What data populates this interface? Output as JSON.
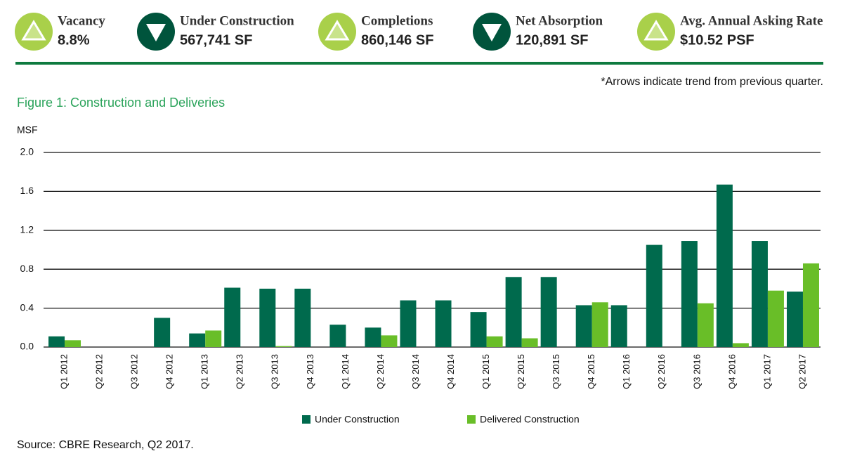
{
  "kpis": [
    {
      "label": "Vacancy",
      "value": "8.8%",
      "trend": "up"
    },
    {
      "label": "Under Construction",
      "value": "567,741 SF",
      "trend": "down"
    },
    {
      "label": "Completions",
      "value": "860,146 SF",
      "trend": "up"
    },
    {
      "label": "Net Absorption",
      "value": "120,891  SF",
      "trend": "down"
    },
    {
      "label": "Avg. Annual Asking Rate",
      "value": "$10.52 PSF",
      "trend": "up"
    }
  ],
  "note": "*Arrows indicate trend from previous quarter.",
  "source": "Source: CBRE Research, Q2 2017.",
  "chart_data": {
    "type": "bar",
    "title": "Figure 1: Construction and Deliveries",
    "y_label": "MSF",
    "categories": [
      "Q1 2012",
      "Q2 2012",
      "Q3 2012",
      "Q4 2012",
      "Q1 2013",
      "Q2 2013",
      "Q3 2013",
      "Q4 2013",
      "Q1 2014",
      "Q2 2014",
      "Q3 2014",
      "Q4 2014",
      "Q1 2015",
      "Q2 2015",
      "Q3 2015",
      "Q4 2015",
      "Q1 2016",
      "Q2 2016",
      "Q3 2016",
      "Q4 2016",
      "Q1 2017",
      "Q2 2017"
    ],
    "series": [
      {
        "name": "Under Construction",
        "color": "#006a4d",
        "values": [
          0.11,
          0,
          0,
          0.3,
          0.14,
          0.61,
          0.6,
          0.6,
          0.23,
          0.2,
          0.48,
          0.48,
          0.36,
          0.72,
          0.72,
          0.43,
          0.43,
          1.05,
          1.09,
          1.67,
          1.09,
          0.57
        ]
      },
      {
        "name": "Delivered Construction",
        "color": "#69be28",
        "values": [
          0.07,
          0,
          0,
          0,
          0.17,
          0,
          0.01,
          0,
          0,
          0.12,
          0,
          0,
          0.11,
          0.09,
          0,
          0.46,
          0,
          0,
          0.45,
          0.04,
          0.58,
          0.86
        ]
      }
    ],
    "ylim": [
      0,
      2
    ],
    "yticks": [
      {
        "value": 0,
        "label": "0.0"
      },
      0.4,
      0.8,
      1.2,
      1.6,
      {
        "value": 2,
        "label": "2.0"
      }
    ],
    "grid": true
  }
}
